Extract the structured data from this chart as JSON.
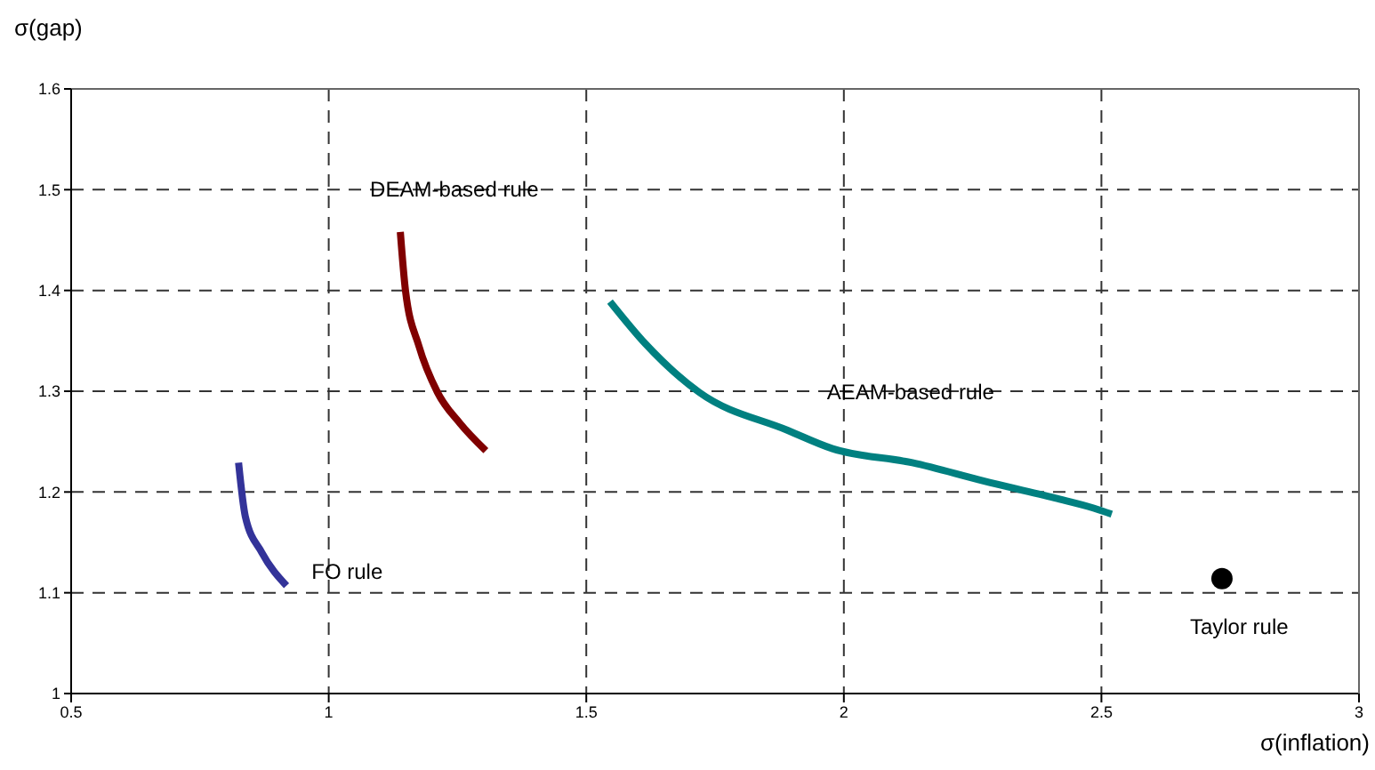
{
  "chart_data": {
    "type": "line",
    "xlabel": "σ(inflation)",
    "ylabel": "σ(gap)",
    "xlim": [
      0.5,
      3
    ],
    "xticks": [
      0.5,
      1,
      1.5,
      2,
      2.5,
      3
    ],
    "ylim": [
      1,
      1.6
    ],
    "yticks": [
      1,
      1.1,
      1.2,
      1.3,
      1.4,
      1.5,
      1.6
    ],
    "grid": true,
    "line_style": "solid",
    "marker": "none",
    "series": [
      {
        "name": "FO rule",
        "color": "#333399",
        "x": [
          0.825,
          0.838,
          0.87,
          0.918
        ],
        "values": [
          1.229,
          1.176,
          1.14,
          1.107
        ]
      },
      {
        "name": "DEAM-based rule",
        "color": "#800000",
        "x": [
          1.139,
          1.149,
          1.175,
          1.211,
          1.255,
          1.305
        ],
        "values": [
          1.458,
          1.4,
          1.345,
          1.299,
          1.268,
          1.241
        ]
      },
      {
        "name": "AEAM-based rule",
        "color": "#008080",
        "x": [
          1.546,
          1.615,
          1.719,
          1.892,
          1.978,
          2.133,
          2.271,
          2.41,
          2.485,
          2.52
        ],
        "values": [
          1.389,
          1.347,
          1.299,
          1.261,
          1.243,
          1.229,
          1.211,
          1.194,
          1.184,
          1.178
        ]
      },
      {
        "name": "Taylor rule",
        "type": "scatter",
        "marker": "circle",
        "color": "#000000",
        "x": [
          2.734
        ],
        "values": [
          1.114
        ]
      }
    ]
  }
}
